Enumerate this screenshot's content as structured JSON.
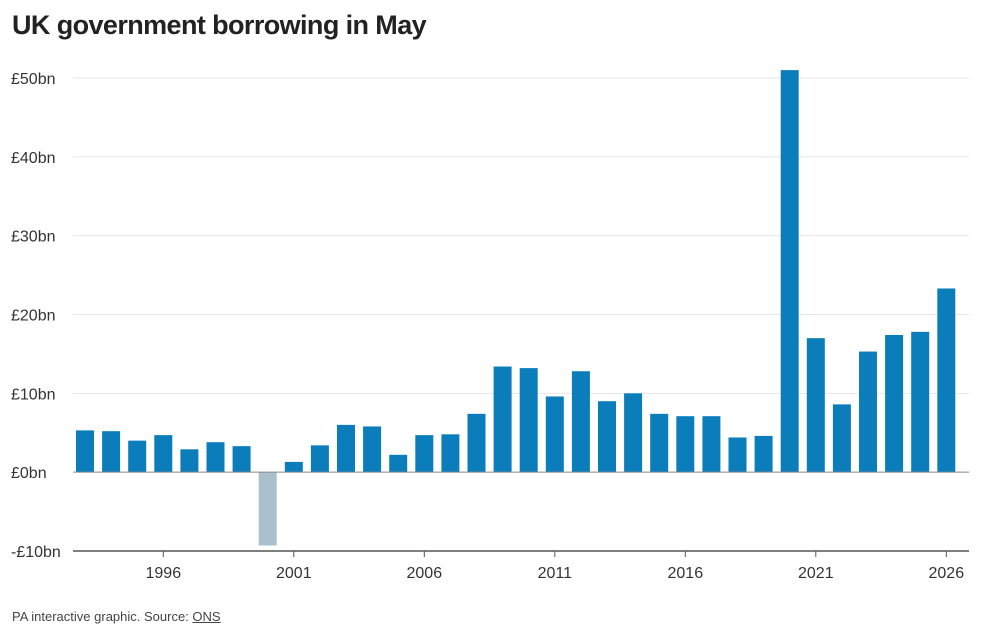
{
  "header": {
    "title": "UK government borrowing in May"
  },
  "footer": {
    "text": "PA interactive graphic. Source: ",
    "source_link": "ONS"
  },
  "colors": {
    "positive": "#0a7dba",
    "negative": "#a9c1cc",
    "grid": "#e6e6e6",
    "axis": "#555555"
  },
  "chart_data": {
    "type": "bar",
    "title": "UK government borrowing in May",
    "xlabel": "",
    "ylabel": "",
    "x": [
      1993,
      1994,
      1995,
      1996,
      1997,
      1998,
      1999,
      2000,
      2001,
      2002,
      2003,
      2004,
      2005,
      2006,
      2007,
      2008,
      2009,
      2010,
      2011,
      2012,
      2013,
      2014,
      2015,
      2016,
      2017,
      2018,
      2019,
      2020,
      2021,
      2022,
      2023,
      2024,
      2025,
      2026
    ],
    "values": [
      5.3,
      5.2,
      4.0,
      4.7,
      2.9,
      3.8,
      3.3,
      -9.3,
      1.3,
      3.4,
      6.0,
      5.8,
      2.2,
      4.7,
      4.8,
      7.4,
      13.4,
      13.2,
      9.6,
      12.8,
      9.0,
      10.0,
      7.4,
      7.1,
      7.1,
      4.4,
      4.6,
      51.0,
      17.0,
      8.6,
      15.3,
      17.4,
      17.8,
      23.3
    ],
    "ylim": [
      -10,
      50
    ],
    "y_ticks": [
      {
        "value": 50,
        "label": "£50bn"
      },
      {
        "value": 40,
        "label": "£40bn"
      },
      {
        "value": 30,
        "label": "£30bn"
      },
      {
        "value": 20,
        "label": "£20bn"
      },
      {
        "value": 10,
        "label": "£10bn"
      },
      {
        "value": 0,
        "label": "£0bn"
      },
      {
        "value": -10,
        "label": "-£10bn"
      }
    ],
    "x_ticks": [
      {
        "value": 1996,
        "label": "1996"
      },
      {
        "value": 2001,
        "label": "2001"
      },
      {
        "value": 2006,
        "label": "2006"
      },
      {
        "value": 2011,
        "label": "2011"
      },
      {
        "value": 2016,
        "label": "2016"
      },
      {
        "value": 2021,
        "label": "2021"
      },
      {
        "value": 2026,
        "label": "2026"
      }
    ],
    "grid": true,
    "legend": "none"
  }
}
